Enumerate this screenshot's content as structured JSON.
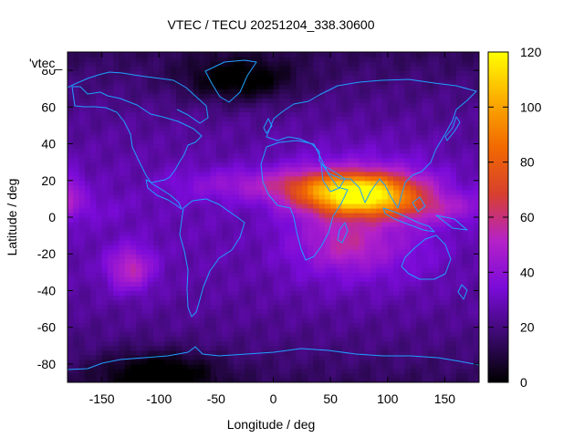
{
  "chart_data": {
    "type": "heatmap",
    "title": "VTEC / TECU 20251204_338.30600",
    "xlabel": "Longitude / deg",
    "ylabel": "Latitude / deg",
    "key_label": "'vtec_",
    "xlim": [
      -180,
      180
    ],
    "ylim": [
      -90,
      90
    ],
    "x_ticks": [
      -150,
      -100,
      -50,
      0,
      50,
      100,
      150
    ],
    "y_ticks": [
      -80,
      -60,
      -40,
      -20,
      0,
      20,
      40,
      60,
      80
    ],
    "colorbar_range": [
      0,
      120
    ],
    "colorbar_ticks": [
      0,
      20,
      40,
      60,
      80,
      100,
      120
    ],
    "colormap": [
      "#000000",
      "#3b0a6e",
      "#7a0bd9",
      "#b522c8",
      "#d8402d",
      "#f26a00",
      "#fcae00",
      "#ffff00"
    ],
    "coastline_color": "#1ea0ff",
    "grid": false,
    "lat_step": 2.5,
    "lon_step": 5,
    "field_features": [
      {
        "kind": "background",
        "value": 28
      },
      {
        "kind": "equatorial_peak",
        "lon": 75,
        "lat": 12,
        "value": 108
      },
      {
        "kind": "anomaly_peak",
        "lon": -125,
        "lat": -28,
        "value": 55
      },
      {
        "kind": "depletion",
        "lon": -30,
        "lat": 75,
        "value": 6
      },
      {
        "kind": "depletion",
        "lon": -100,
        "lat": -85,
        "value": 6
      }
    ]
  }
}
